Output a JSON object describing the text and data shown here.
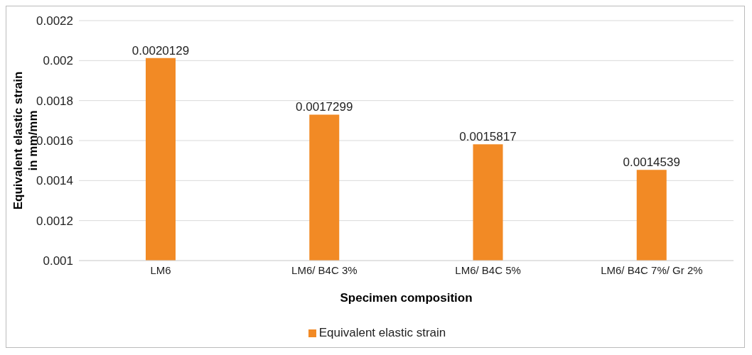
{
  "chart_data": {
    "type": "bar",
    "xlabel": "Specimen composition",
    "ylabel": "Equivalent elastic strain in mm/mm",
    "categories": [
      "LM6",
      "LM6/ B4C 3%",
      "LM6/ B4C 5%",
      "LM6/ B4C 7%/ Gr 2%"
    ],
    "series": [
      {
        "name": "Equivalent elastic strain",
        "color": "#f28a25",
        "values": [
          0.0020129,
          0.0017299,
          0.0015817,
          0.0014539
        ]
      }
    ],
    "ylim": [
      0.001,
      0.0022
    ],
    "yticks": [
      0.001,
      0.0012,
      0.0014,
      0.0016,
      0.0018,
      0.002,
      0.0022
    ],
    "grid": "y",
    "legend": "bottom",
    "data_labels": true
  }
}
